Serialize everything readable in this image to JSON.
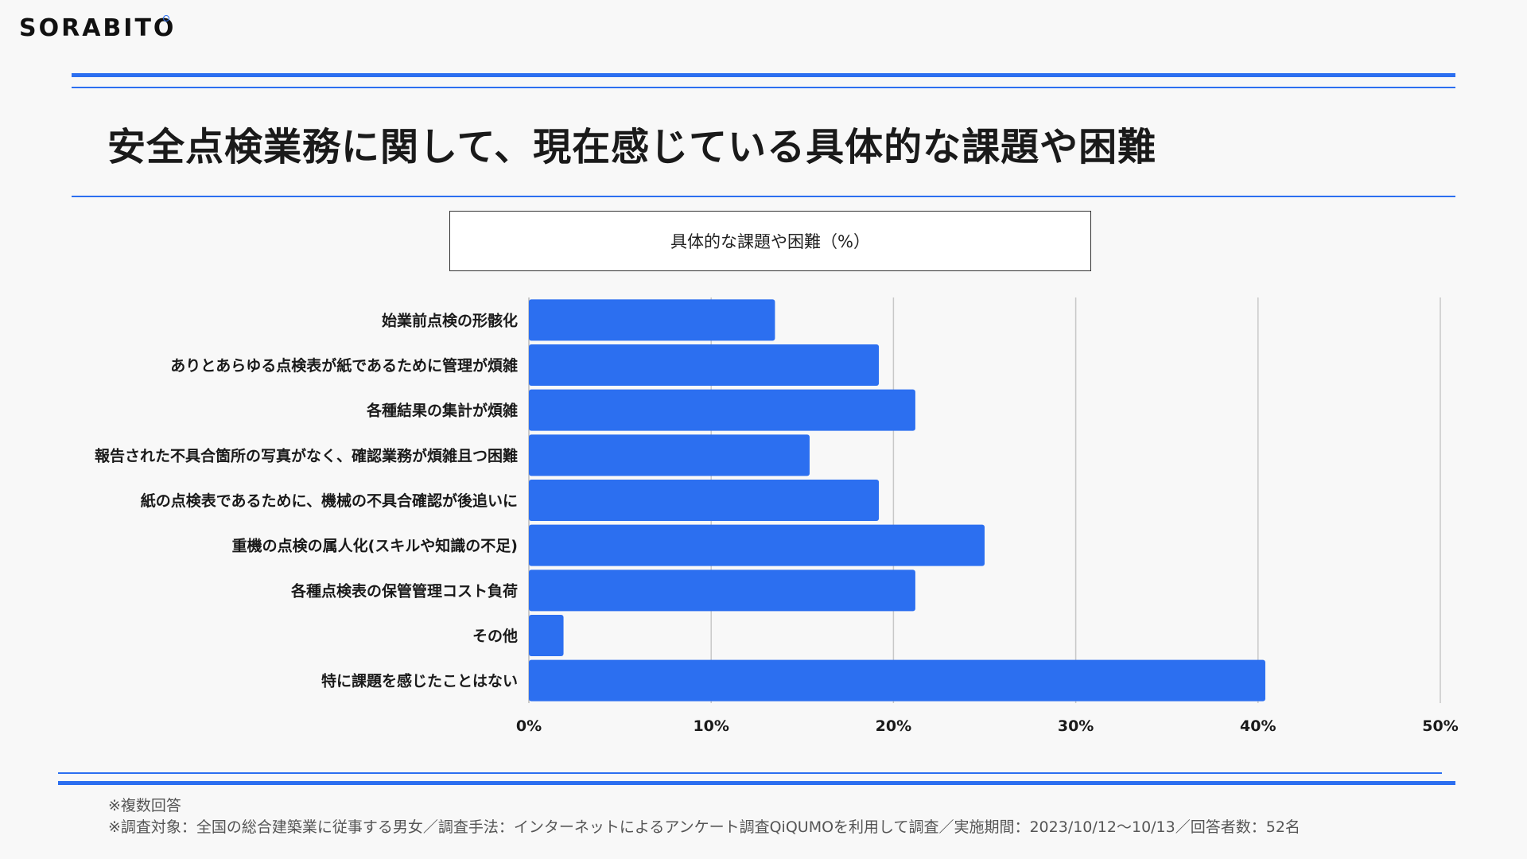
{
  "brand": {
    "logo_text": "SORABITO"
  },
  "page": {
    "title": "安全点検業務に関して、現在感じている具体的な課題や困難"
  },
  "colors": {
    "accent": "#2c6ff0",
    "bar": "#2c6ff0",
    "grid": "#c8c8c8"
  },
  "chart_data": {
    "type": "bar",
    "orientation": "horizontal",
    "title": "具体的な課題や困難（%）",
    "categories": [
      "始業前点検の形骸化",
      "ありとあらゆる点検表が紙であるために管理が煩雑",
      "各種結果の集計が煩雑",
      "報告された不具合箇所の写真がなく、確認業務が煩雑且つ困難",
      "紙の点検表であるために、機械の不具合確認が後追いに",
      "重機の点検の属人化(スキルや知識の不足)",
      "各種点検表の保管管理コスト負荷",
      "その他",
      "特に課題を感じたことはない"
    ],
    "values": [
      13.5,
      19.2,
      21.2,
      15.4,
      19.2,
      25.0,
      21.2,
      1.9,
      40.4
    ],
    "xlim": [
      0,
      50
    ],
    "xticks": [
      0,
      10,
      20,
      30,
      40,
      50
    ],
    "xtick_labels": [
      "0%",
      "10%",
      "20%",
      "30%",
      "40%",
      "50%"
    ],
    "grid": true,
    "legend": "none"
  },
  "footnotes": {
    "line1": "※複数回答",
    "line2": "※調査対象：全国の総合建築業に従事する男女／調査手法：インターネットによるアンケート調査QiQUMOを利用して調査／実施期間：2023/10/12〜10/13／回答者数：52名"
  }
}
